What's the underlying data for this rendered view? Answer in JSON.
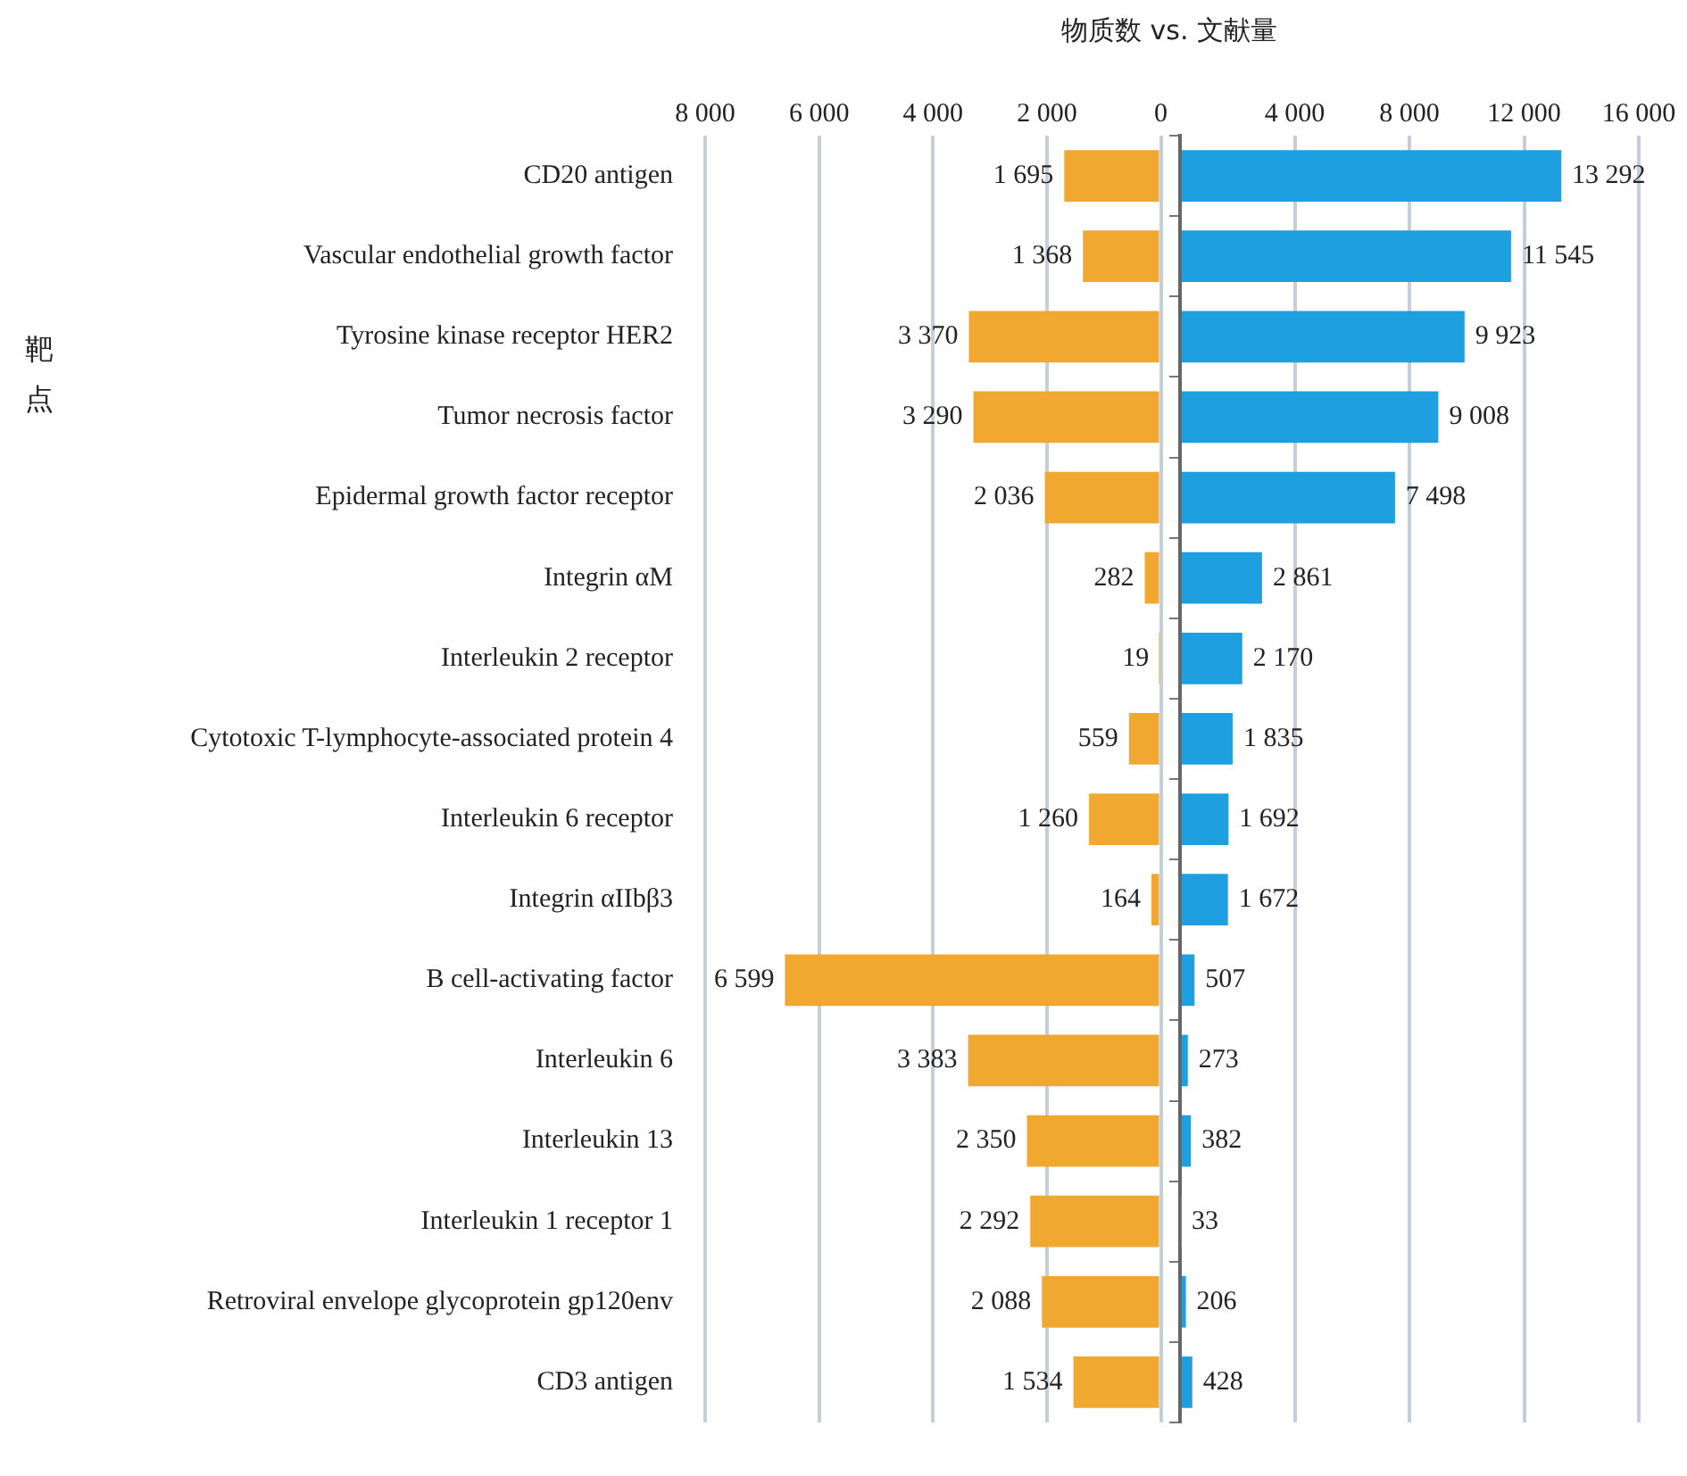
{
  "chart_data": [
    {
      "type": "bar",
      "orientation": "horizontal",
      "title": "物质数 vs. 文献量",
      "ylabel": "靶点",
      "categories": [
        "CD20 antigen",
        "Vascular endothelial growth factor",
        "Tyrosine kinase receptor HER2",
        "Tumor necrosis factor",
        "Epidermal growth factor receptor",
        "Integrin αM",
        "Interleukin 2 receptor",
        "Cytotoxic T-lymphocyte-associated protein 4",
        "Interleukin 6 receptor",
        "Integrin αIIbβ3",
        "B cell-activating factor",
        "Interleukin 6",
        "Interleukin 13",
        "Interleukin 1 receptor 1",
        "Retroviral envelope glycoprotein gp120env",
        "CD3 antigen"
      ],
      "color": "#f0a830",
      "values": [
        1695,
        1368,
        3370,
        3290,
        2036,
        282,
        19,
        559,
        1260,
        164,
        6599,
        3383,
        2350,
        2292,
        2088,
        1534
      ],
      "value_labels": [
        "1 695",
        "1 368",
        "3 370",
        "3 290",
        "2 036",
        "282",
        "19",
        "559",
        "1 260",
        "164",
        "6 599",
        "3 383",
        "2 350",
        "2 292",
        "2 088",
        "1 534"
      ],
      "xlim": [
        8000,
        0
      ],
      "xticks": [
        {
          "value": 8000,
          "label": "8 000"
        },
        {
          "value": 6000,
          "label": "6 000"
        },
        {
          "value": 4000,
          "label": "4 000"
        },
        {
          "value": 2000,
          "label": "2 000"
        },
        0
      ],
      "grid": "x"
    },
    {
      "type": "bar",
      "orientation": "horizontal",
      "tick_labels": "x",
      "color": "#1ea0e0",
      "values": [
        13292,
        11545,
        9923,
        9008,
        7498,
        2861,
        2170,
        1835,
        1692,
        1672,
        507,
        273,
        382,
        33,
        206,
        428
      ],
      "value_labels": [
        "13 292",
        "11 545",
        "9 923",
        "9 008",
        "7 498",
        "2 861",
        "2 170",
        "1 835",
        "1 692",
        "1 672",
        "507",
        "273",
        "382",
        "33",
        "206",
        "428"
      ],
      "xlim": [
        0,
        16000
      ],
      "xticks": [
        {
          "value": 0,
          "label": null
        },
        {
          "value": 4000,
          "label": "4 000"
        },
        {
          "value": 8000,
          "label": "8 000"
        },
        {
          "value": 12000,
          "label": "12 000"
        },
        {
          "value": 16000,
          "label": "16 000"
        }
      ],
      "grid": "x"
    }
  ]
}
